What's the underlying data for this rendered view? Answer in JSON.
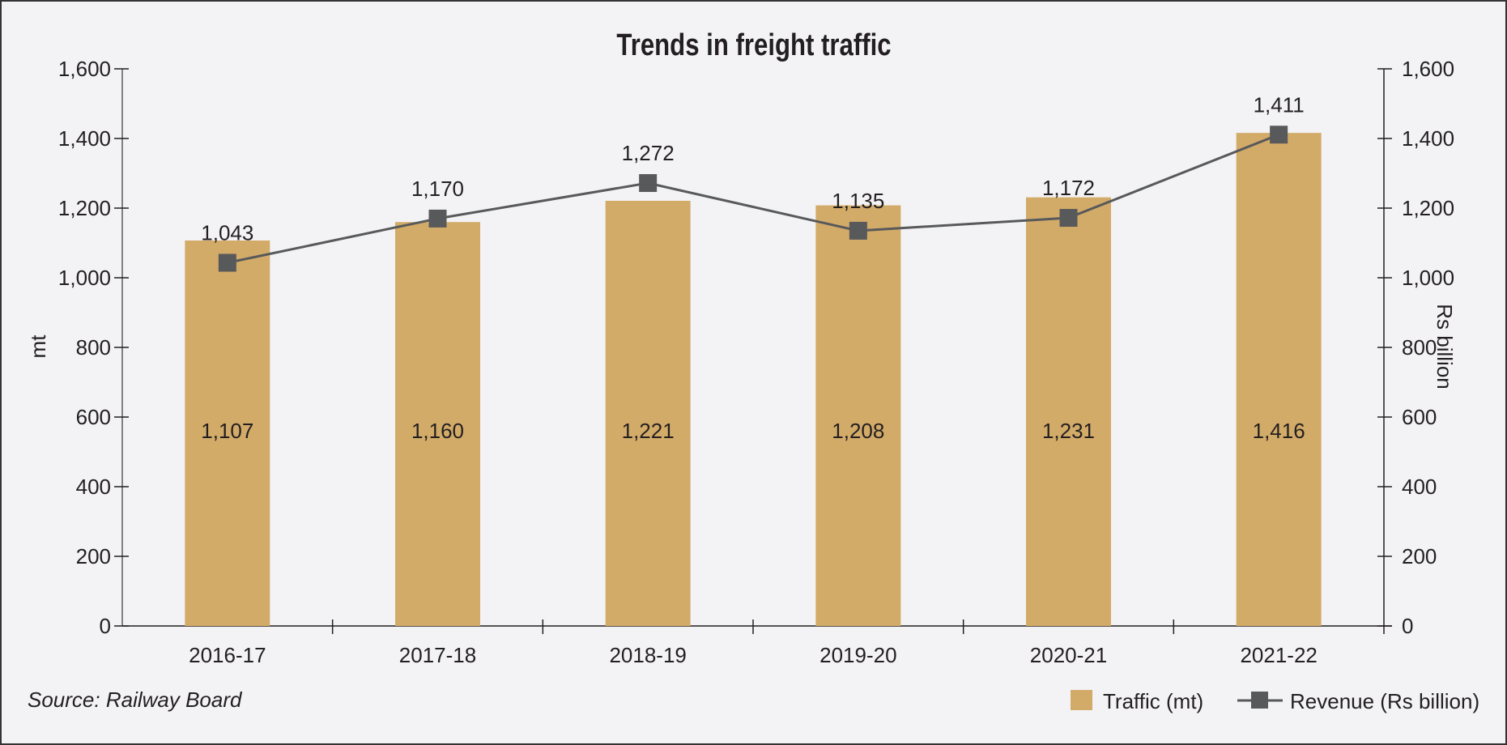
{
  "chart_data": {
    "type": "bar+line",
    "title": "Trends in freight traffic",
    "categories": [
      "2016-17",
      "2017-18",
      "2018-19",
      "2019-20",
      "2020-21",
      "2021-22"
    ],
    "series": [
      {
        "name": "Traffic (mt)",
        "type": "bar",
        "axis": "left",
        "color": "#d3ab69",
        "values": [
          1107,
          1160,
          1221,
          1208,
          1231,
          1416
        ]
      },
      {
        "name": "Revenue (Rs billion)",
        "type": "line",
        "axis": "right",
        "color": "#58595b",
        "marker": "square",
        "values": [
          1043,
          1170,
          1272,
          1135,
          1172,
          1411
        ]
      }
    ],
    "ylabel_left": "mt",
    "ylabel_right": "Rs billion",
    "ylim": [
      0,
      1600
    ],
    "yticks": [
      "0",
      "200",
      "400",
      "600",
      "800",
      "1,000",
      "1,200",
      "1,400",
      "1,600"
    ],
    "grid": false,
    "legend": "bottom-right",
    "source": "Source: Railway Board"
  }
}
